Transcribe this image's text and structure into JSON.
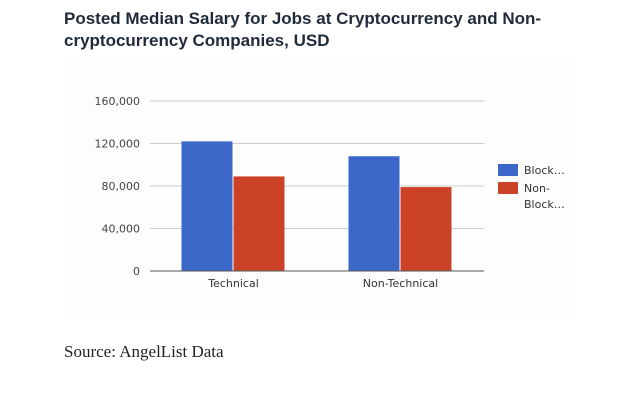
{
  "title": "Posted Median Salary for Jobs at Cryptocurrency and Non-cryptocurrency Companies, USD",
  "source": "Source: AngelList Data",
  "chart_data": {
    "type": "bar",
    "title": "Posted Median Salary for Jobs at Cryptocurrency and Non-cryptocurrency Companies, USD",
    "xlabel": "",
    "ylabel": "",
    "categories": [
      "Technical",
      "Non-Technical"
    ],
    "series": [
      {
        "name": "Block…",
        "color": "#3b67c9",
        "values": [
          122000,
          108000
        ]
      },
      {
        "name": "Non-Block…",
        "color": "#cc4227",
        "values": [
          89000,
          79000
        ]
      }
    ],
    "ylim": [
      0,
      160000
    ],
    "yticks": [
      0,
      40000,
      80000,
      120000,
      160000
    ],
    "ytick_labels": [
      "0",
      "40,000",
      "80,000",
      "120,000",
      "160,000"
    ],
    "grid": true,
    "legend_position": "right"
  }
}
